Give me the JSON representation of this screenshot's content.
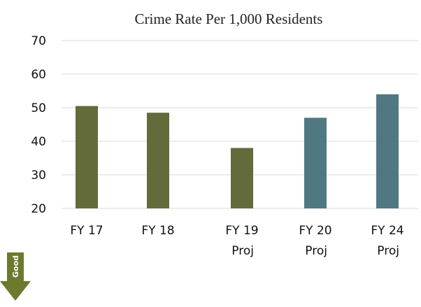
{
  "chart_data": {
    "type": "bar",
    "title": "Crime Rate Per 1,000 Residents",
    "xlabel": "",
    "ylabel": "",
    "ylim": [
      20,
      70
    ],
    "yticks": [
      20,
      30,
      40,
      50,
      60,
      70
    ],
    "grid": true,
    "categories": [
      [
        "FY 17"
      ],
      [
        "FY 18"
      ],
      [
        "FY 19",
        "Proj"
      ],
      [
        "FY 20",
        "Proj"
      ],
      [
        "FY 24",
        "Proj"
      ]
    ],
    "values": [
      50.5,
      48.5,
      38,
      47,
      54
    ],
    "bar_colors": [
      "#636b3a",
      "#636b3a",
      "#636b3a",
      "#4f7882",
      "#4f7882"
    ]
  },
  "indicator": {
    "label": "Good",
    "icon": "down-arrow-icon",
    "color": "#6b7a2e"
  }
}
